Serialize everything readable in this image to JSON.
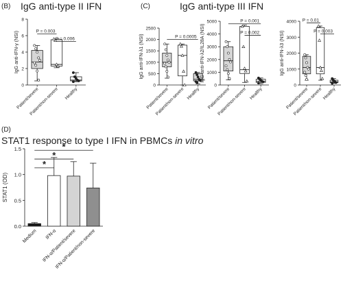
{
  "panels": {
    "B": {
      "letter": "(B)",
      "title": "IgG anti-type II IFN"
    },
    "C": {
      "letter": "(C)",
      "title": "IgG anti-type III IFN"
    },
    "D": {
      "letter": "(D)",
      "title_main": "STAT1 response to type I IFN in PBMCs ",
      "title_italic": "in vitro"
    }
  },
  "colors": {
    "box_fill_grey": "#d6d6d6",
    "bar_black": "#1a1a1a",
    "bar_white": "#ffffff",
    "bar_light": "#d4d4d4",
    "bar_grey": "#8f8f8f",
    "line": "#222222"
  },
  "chart_data": [
    {
      "id": "ifn_gamma",
      "type": "box",
      "ylabel": "IgG anti-IFN-γ (NSI)",
      "ylim": [
        0,
        8
      ],
      "yticks": [
        "0",
        "2",
        "4",
        "6",
        "8"
      ],
      "categories": [
        "Patient/severe",
        "Patient/non-severe",
        "Healthy"
      ],
      "boxes": [
        {
          "min": 0.5,
          "q1": 2.0,
          "median": 2.8,
          "q3": 4.2,
          "max": 4.8,
          "points": [
            4.8,
            4.4,
            4.0,
            3.3,
            3.0,
            2.7,
            2.4,
            1.7,
            0.6
          ]
        },
        {
          "min": 2.1,
          "q1": 2.3,
          "median": 2.5,
          "q3": 5.5,
          "max": 5.6,
          "points": [
            5.6,
            5.4,
            2.5,
            2.3
          ]
        },
        {
          "min": 0.4,
          "q1": 0.5,
          "median": 0.6,
          "q3": 1.0,
          "max": 1.5,
          "points": [
            1.5,
            1.0,
            0.8,
            0.6,
            0.5,
            0.4
          ]
        }
      ],
      "pvalues": [
        {
          "text": "P = 0.003",
          "from": 0,
          "to": 1,
          "y": 6.2
        },
        {
          "text": "P = 0.006",
          "from": 1,
          "to": 2,
          "y": 5.3
        }
      ]
    },
    {
      "id": "ifn_lambda1",
      "type": "box",
      "ylabel": "IgG anti-IFN-λ1 (NSI)",
      "ylim": [
        0,
        2500
      ],
      "yticks": [
        "0",
        "500",
        "1000",
        "1500",
        "2000",
        "2500"
      ],
      "categories": [
        "Patient/severe",
        "Patient/non-severe",
        "Healthy"
      ],
      "boxes": [
        {
          "min": 300,
          "q1": 800,
          "median": 1000,
          "q3": 1400,
          "max": 1800,
          "points": [
            1800,
            1550,
            1300,
            1100,
            1000,
            950,
            800,
            600,
            350
          ]
        },
        {
          "min": 0,
          "q1": 400,
          "median": 1300,
          "q3": 1750,
          "max": 1800,
          "points": [
            1800,
            1700,
            1300,
            600,
            0
          ]
        },
        {
          "min": 50,
          "q1": 180,
          "median": 250,
          "q3": 500,
          "max": 550,
          "points": [
            550,
            450,
            350,
            250,
            200,
            150,
            100
          ]
        }
      ],
      "pvalues": [
        {
          "text": "P = 0.0005",
          "from": 0,
          "to": 2,
          "y": 2000
        }
      ]
    },
    {
      "id": "il28a",
      "type": "box",
      "ylabel": "IgG anti-IFN-λ2/IL28A (NSI)",
      "ylim": [
        0,
        5000
      ],
      "yticks": [
        "0",
        "1000",
        "2000",
        "3000",
        "4000",
        "5000"
      ],
      "categories": [
        "Patient/severe",
        "Patient/non-severe",
        "Healthy"
      ],
      "boxes": [
        {
          "min": 400,
          "q1": 1100,
          "median": 1900,
          "q3": 3000,
          "max": 3400,
          "points": [
            3400,
            3000,
            2500,
            2000,
            1800,
            1500,
            1200,
            900,
            500
          ]
        },
        {
          "min": 200,
          "q1": 900,
          "median": 1200,
          "q3": 4600,
          "max": 4700,
          "points": [
            4600,
            3000,
            1300,
            1100,
            300
          ]
        },
        {
          "min": 100,
          "q1": 200,
          "median": 300,
          "q3": 450,
          "max": 550,
          "points": [
            550,
            450,
            350,
            300,
            250,
            150
          ]
        }
      ],
      "pvalues": [
        {
          "text": "P = 0.001",
          "from": 0,
          "to": 2,
          "y": 4800
        },
        {
          "text": "P = 0.002",
          "from": 1,
          "to": 2,
          "y": 3900
        }
      ]
    },
    {
      "id": "ifn_lambda3",
      "type": "box",
      "ylabel": "IgG anti-IFN-λ3 (NSI)",
      "ylim": [
        0,
        4000
      ],
      "yticks": [
        "0",
        "1000",
        "2000",
        "3000",
        "4000"
      ],
      "categories": [
        "Patient/severe",
        "Patient/non-severe",
        "Healthy"
      ],
      "boxes": [
        {
          "min": 300,
          "q1": 700,
          "median": 1100,
          "q3": 1800,
          "max": 1900,
          "points": [
            1900,
            1700,
            1400,
            1100,
            1000,
            800,
            600,
            350
          ]
        },
        {
          "min": 300,
          "q1": 700,
          "median": 1100,
          "q3": 3600,
          "max": 3700,
          "points": [
            3700,
            2800,
            1100,
            900,
            400
          ]
        },
        {
          "min": 100,
          "q1": 150,
          "median": 200,
          "q3": 300,
          "max": 400,
          "points": [
            400,
            300,
            250,
            200,
            150,
            100
          ]
        }
      ],
      "pvalues": [
        {
          "text": "P = 0.01",
          "from": 0,
          "to": 1,
          "y": 3900
        },
        {
          "text": "P = 0.003",
          "from": 1,
          "to": 2,
          "y": 3200
        }
      ]
    },
    {
      "id": "stat1",
      "type": "bar",
      "ylabel": "STAT1 (OD)",
      "ylim": [
        0,
        1.5
      ],
      "yticks": [
        "0.0",
        "0.5",
        "1.0",
        "1.5"
      ],
      "categories": [
        "Medium",
        "IFN-α",
        "IFN-α/Patient/severe",
        "IFN-α/Patient/non-severe"
      ],
      "values": [
        0.05,
        0.98,
        0.97,
        0.74
      ],
      "errors": [
        0.02,
        0.35,
        0.28,
        0.48
      ],
      "significance": [
        {
          "text": "*",
          "from": 0,
          "to": 1,
          "y": 1.13
        },
        {
          "text": "*",
          "from": 0,
          "to": 2,
          "y": 1.3
        },
        {
          "text": "*",
          "from": 0,
          "to": 3,
          "y": 1.47
        }
      ]
    }
  ]
}
